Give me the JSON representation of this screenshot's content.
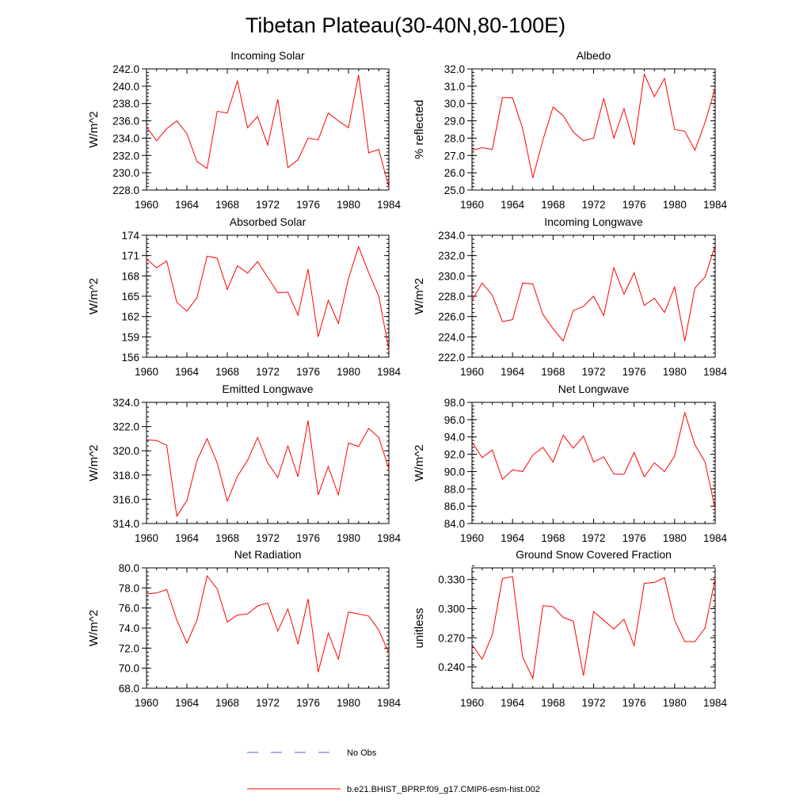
{
  "title": "Tibetan Plateau(30-40N,80-100E)",
  "colors": {
    "model": "#ff0000",
    "obs": "#4a64d8",
    "axis": "#000000"
  },
  "legend": [
    {
      "label": "No Obs",
      "style": "dashed",
      "color": "#4a64d8"
    },
    {
      "label": "b.e21.BHIST_BPRP.f09_g17.CMIP6-esm-hist.002",
      "style": "solid",
      "color": "#ff0000"
    }
  ],
  "chart_data": [
    {
      "type": "line",
      "title": "Incoming Solar",
      "ylabel": "W/m^2",
      "xlim": [
        1960,
        1984
      ],
      "x_ticks": [
        "1960",
        "1964",
        "1968",
        "1972",
        "1976",
        "1980",
        "1984"
      ],
      "ylim": [
        228.0,
        242.0
      ],
      "y_ticks": [
        "228.0",
        "230.0",
        "232.0",
        "234.0",
        "236.0",
        "238.0",
        "240.0",
        "242.0"
      ],
      "y_minor_step": 0.4,
      "x": [
        1960,
        1961,
        1962,
        1963,
        1964,
        1965,
        1966,
        1967,
        1968,
        1969,
        1970,
        1971,
        1972,
        1973,
        1974,
        1975,
        1976,
        1977,
        1978,
        1979,
        1980,
        1981,
        1982,
        1983,
        1984
      ],
      "series": [
        {
          "name": "b.e21.BHIST_BPRP.f09_g17.CMIP6-esm-hist.002",
          "values": [
            235.3,
            233.7,
            235.1,
            236.0,
            234.5,
            231.3,
            230.5,
            237.1,
            236.9,
            240.6,
            235.2,
            236.5,
            233.2,
            238.5,
            230.6,
            231.5,
            234.0,
            233.8,
            236.9,
            236.0,
            235.2,
            241.3,
            232.3,
            232.7,
            228.3
          ]
        }
      ]
    },
    {
      "type": "line",
      "title": "Albedo",
      "ylabel": "% reflected",
      "xlim": [
        1960,
        1984
      ],
      "x_ticks": [
        "1960",
        "1964",
        "1968",
        "1972",
        "1976",
        "1980",
        "1984"
      ],
      "ylim": [
        25.0,
        32.0
      ],
      "y_ticks": [
        "25.0",
        "26.0",
        "27.0",
        "28.0",
        "29.0",
        "30.0",
        "31.0",
        "32.0"
      ],
      "y_minor_step": 0.2,
      "x": [
        1960,
        1961,
        1962,
        1963,
        1964,
        1965,
        1966,
        1967,
        1968,
        1969,
        1970,
        1971,
        1972,
        1973,
        1974,
        1975,
        1976,
        1977,
        1978,
        1979,
        1980,
        1981,
        1982,
        1983,
        1984
      ],
      "series": [
        {
          "name": "b.e21.BHIST_BPRP.f09_g17.CMIP6-esm-hist.002",
          "values": [
            27.3,
            27.45,
            27.35,
            30.35,
            30.33,
            28.55,
            25.7,
            27.9,
            29.8,
            29.3,
            28.35,
            27.85,
            28.0,
            30.3,
            28.0,
            29.7,
            27.6,
            31.7,
            30.4,
            31.45,
            28.5,
            28.4,
            27.3,
            28.9,
            30.9
          ]
        }
      ]
    },
    {
      "type": "line",
      "title": "Absorbed Solar",
      "ylabel": "W/m^2",
      "xlim": [
        1960,
        1984
      ],
      "x_ticks": [
        "1960",
        "1964",
        "1968",
        "1972",
        "1976",
        "1980",
        "1984"
      ],
      "ylim": [
        156,
        174
      ],
      "y_ticks": [
        "156",
        "159",
        "162",
        "165",
        "168",
        "171",
        "174"
      ],
      "y_minor_step": 0.6,
      "x": [
        1960,
        1961,
        1962,
        1963,
        1964,
        1965,
        1966,
        1967,
        1968,
        1969,
        1970,
        1971,
        1972,
        1973,
        1974,
        1975,
        1976,
        1977,
        1978,
        1979,
        1980,
        1981,
        1982,
        1983,
        1984
      ],
      "series": [
        {
          "name": "b.e21.BHIST_BPRP.f09_g17.CMIP6-esm-hist.002",
          "values": [
            170.5,
            169.2,
            170.2,
            164.1,
            162.8,
            164.8,
            170.9,
            170.6,
            166.0,
            169.5,
            168.4,
            170.1,
            167.8,
            165.5,
            165.6,
            162.2,
            169.0,
            159.0,
            164.4,
            161.0,
            167.6,
            172.3,
            168.5,
            165.0,
            157.1
          ]
        }
      ]
    },
    {
      "type": "line",
      "title": "Incoming Longwave",
      "ylabel": "W/m^2",
      "xlim": [
        1960,
        1984
      ],
      "x_ticks": [
        "1960",
        "1964",
        "1968",
        "1972",
        "1976",
        "1980",
        "1984"
      ],
      "ylim": [
        222.0,
        234.0
      ],
      "y_ticks": [
        "222.0",
        "224.0",
        "226.0",
        "228.0",
        "230.0",
        "232.0",
        "234.0"
      ],
      "y_minor_step": 0.4,
      "x": [
        1960,
        1961,
        1962,
        1963,
        1964,
        1965,
        1966,
        1967,
        1968,
        1969,
        1970,
        1971,
        1972,
        1973,
        1974,
        1975,
        1976,
        1977,
        1978,
        1979,
        1980,
        1981,
        1982,
        1983,
        1984
      ],
      "series": [
        {
          "name": "b.e21.BHIST_BPRP.f09_g17.CMIP6-esm-hist.002",
          "values": [
            227.6,
            229.3,
            228.1,
            225.5,
            225.7,
            229.3,
            229.2,
            226.2,
            224.8,
            223.6,
            226.6,
            227.0,
            228.0,
            226.1,
            230.8,
            228.2,
            230.3,
            227.1,
            227.8,
            226.4,
            228.9,
            223.6,
            228.8,
            229.9,
            233.0
          ]
        }
      ]
    },
    {
      "type": "line",
      "title": "Emitted Longwave",
      "ylabel": "W/m^2",
      "xlim": [
        1960,
        1984
      ],
      "x_ticks": [
        "1960",
        "1964",
        "1968",
        "1972",
        "1976",
        "1980",
        "1984"
      ],
      "ylim": [
        314.0,
        324.0
      ],
      "y_ticks": [
        "314.0",
        "316.0",
        "318.0",
        "320.0",
        "322.0",
        "324.0"
      ],
      "y_minor_step": 0.4,
      "x": [
        1960,
        1961,
        1962,
        1963,
        1964,
        1965,
        1966,
        1967,
        1968,
        1969,
        1970,
        1971,
        1972,
        1973,
        1974,
        1975,
        1976,
        1977,
        1978,
        1979,
        1980,
        1981,
        1982,
        1983,
        1984
      ],
      "series": [
        {
          "name": "b.e21.BHIST_BPRP.f09_g17.CMIP6-esm-hist.002",
          "values": [
            320.9,
            320.85,
            320.45,
            314.6,
            315.9,
            319.2,
            321.0,
            319.0,
            315.85,
            317.9,
            319.2,
            321.1,
            319.0,
            317.8,
            320.4,
            317.85,
            322.5,
            316.35,
            318.7,
            316.35,
            320.65,
            320.35,
            321.85,
            321.1,
            318.5
          ]
        }
      ]
    },
    {
      "type": "line",
      "title": "Net Longwave",
      "ylabel": "W/m^2",
      "xlim": [
        1960,
        1984
      ],
      "x_ticks": [
        "1960",
        "1964",
        "1968",
        "1972",
        "1976",
        "1980",
        "1984"
      ],
      "ylim": [
        84.0,
        98.0
      ],
      "y_ticks": [
        "84.0",
        "86.0",
        "88.0",
        "90.0",
        "92.0",
        "94.0",
        "96.0",
        "98.0"
      ],
      "y_minor_step": 0.4,
      "x": [
        1960,
        1961,
        1962,
        1963,
        1964,
        1965,
        1966,
        1967,
        1968,
        1969,
        1970,
        1971,
        1972,
        1973,
        1974,
        1975,
        1976,
        1977,
        1978,
        1979,
        1980,
        1981,
        1982,
        1983,
        1984
      ],
      "series": [
        {
          "name": "b.e21.BHIST_BPRP.f09_g17.CMIP6-esm-hist.002",
          "values": [
            93.4,
            91.6,
            92.5,
            89.1,
            90.2,
            90.0,
            91.9,
            92.8,
            91.1,
            94.2,
            92.7,
            94.1,
            91.1,
            91.7,
            89.7,
            89.7,
            92.2,
            89.4,
            91.0,
            90.0,
            91.8,
            96.8,
            93.1,
            91.1,
            85.7
          ]
        }
      ]
    },
    {
      "type": "line",
      "title": "Net Radiation",
      "ylabel": "W/m^2",
      "xlim": [
        1960,
        1984
      ],
      "x_ticks": [
        "1960",
        "1964",
        "1968",
        "1972",
        "1976",
        "1980",
        "1984"
      ],
      "ylim": [
        68.0,
        80.0
      ],
      "y_ticks": [
        "68.0",
        "70.0",
        "72.0",
        "74.0",
        "76.0",
        "78.0",
        "80.0"
      ],
      "y_minor_step": 0.4,
      "x": [
        1960,
        1961,
        1962,
        1963,
        1964,
        1965,
        1966,
        1967,
        1968,
        1969,
        1970,
        1971,
        1972,
        1973,
        1974,
        1975,
        1976,
        1977,
        1978,
        1979,
        1980,
        1981,
        1982,
        1983,
        1984
      ],
      "series": [
        {
          "name": "b.e21.BHIST_BPRP.f09_g17.CMIP6-esm-hist.002",
          "values": [
            77.4,
            77.5,
            77.85,
            74.8,
            72.5,
            74.8,
            79.2,
            77.9,
            74.6,
            75.3,
            75.4,
            76.2,
            76.5,
            73.7,
            75.9,
            72.4,
            76.9,
            69.6,
            73.5,
            70.9,
            75.6,
            75.4,
            75.2,
            73.8,
            71.5
          ]
        }
      ]
    },
    {
      "type": "line",
      "title": "Ground Snow Covered Fraction",
      "ylabel": "unitless",
      "xlim": [
        1960,
        1984
      ],
      "x_ticks": [
        "1960",
        "1964",
        "1968",
        "1972",
        "1976",
        "1980",
        "1984"
      ],
      "ylim": [
        0.218,
        0.342
      ],
      "y_ticks": [
        "0.240",
        "0.270",
        "0.300",
        "0.330"
      ],
      "y_tick_values": [
        0.24,
        0.27,
        0.3,
        0.33
      ],
      "y_minor_step": 0.006,
      "x": [
        1960,
        1961,
        1962,
        1963,
        1964,
        1965,
        1966,
        1967,
        1968,
        1969,
        1970,
        1971,
        1972,
        1973,
        1974,
        1975,
        1976,
        1977,
        1978,
        1979,
        1980,
        1981,
        1982,
        1983,
        1984
      ],
      "series": [
        {
          "name": "b.e21.BHIST_BPRP.f09_g17.CMIP6-esm-hist.002",
          "values": [
            0.263,
            0.248,
            0.273,
            0.331,
            0.333,
            0.25,
            0.228,
            0.303,
            0.302,
            0.291,
            0.287,
            0.231,
            0.297,
            0.288,
            0.279,
            0.289,
            0.262,
            0.326,
            0.327,
            0.332,
            0.288,
            0.266,
            0.266,
            0.28,
            0.331
          ]
        }
      ]
    }
  ]
}
